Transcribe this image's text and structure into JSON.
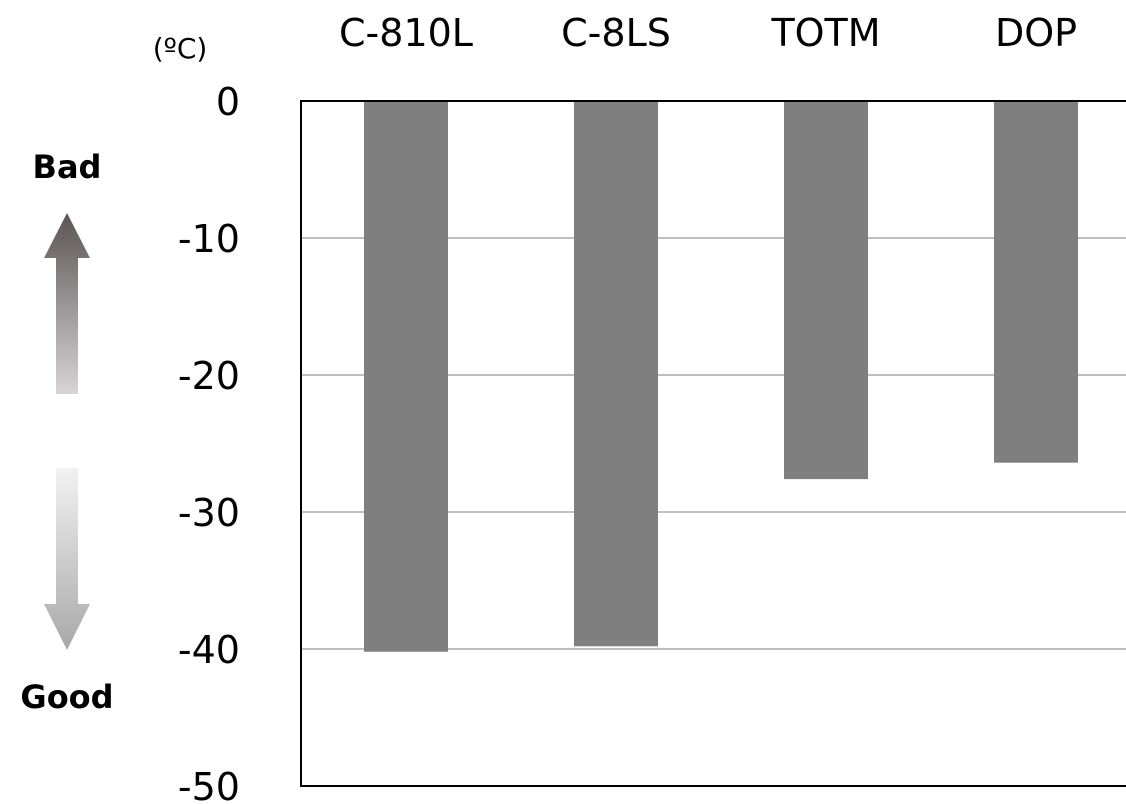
{
  "chart_data": {
    "type": "bar",
    "categories": [
      "C-810L",
      "C-8LS",
      "TOTM",
      "DOP"
    ],
    "values": [
      -40.2,
      -39.8,
      -27.6,
      -26.4
    ],
    "ylim": [
      -50,
      0
    ],
    "yticks": [
      "0",
      "-10",
      "-20",
      "-30",
      "-40",
      "-50"
    ],
    "ytick_values": [
      0,
      -10,
      -20,
      -30,
      -40,
      -50
    ],
    "unit": "(ºC)",
    "xaxis_position": "top",
    "grid": true,
    "legend": "none",
    "bar_color": "#7f7f7f",
    "grid_color": "#bfbfbf"
  },
  "indicator": {
    "bad_label": "Bad",
    "good_label": "Good"
  }
}
